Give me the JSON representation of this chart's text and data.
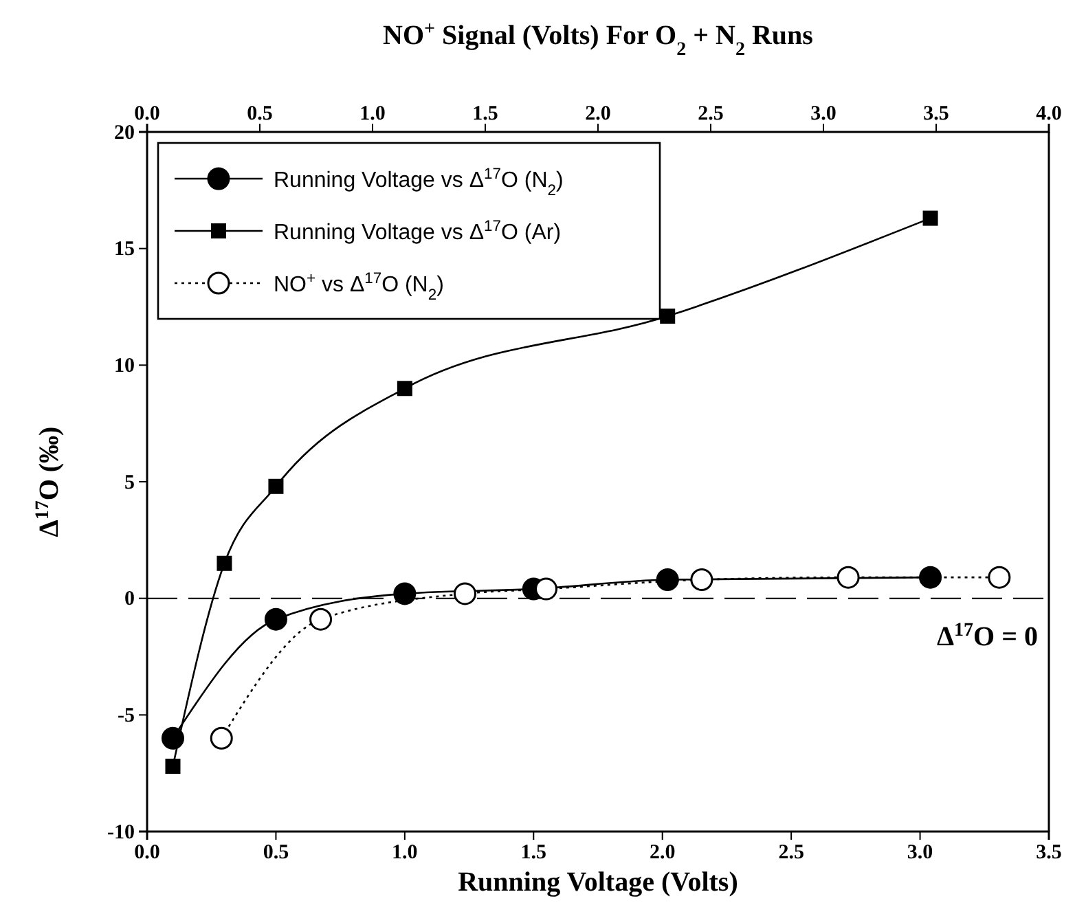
{
  "chart_data": {
    "type": "line",
    "xlabel": "Running Voltage (Volts)",
    "x2label": "NO$^{+}$ Signal (Volts) For O$_{2}$ + N$_{2}$ Runs",
    "ylabel": "Δ$^{17}$O (‰)",
    "xlim": [
      0,
      3.5
    ],
    "xticks": [
      {
        "value": 0,
        "label": "0.0"
      },
      0.5,
      {
        "value": 1,
        "label": "1.0"
      },
      1.5,
      {
        "value": 2,
        "label": "2.0"
      },
      2.5,
      {
        "value": 3,
        "label": "3.0"
      },
      3.5
    ],
    "x2lim": [
      0,
      4
    ],
    "x2ticks": [
      {
        "value": 0,
        "label": "0.0"
      },
      0.5,
      {
        "value": 1,
        "label": "1.0"
      },
      1.5,
      {
        "value": 2,
        "label": "2.0"
      },
      2.5,
      {
        "value": 3,
        "label": "3.0"
      },
      3.5,
      {
        "value": 4,
        "label": "4.0"
      }
    ],
    "ylim": [
      -10,
      20
    ],
    "yticks": [
      -10,
      -5,
      0,
      5,
      10,
      15,
      20
    ],
    "grid": false,
    "legend": "top left",
    "series": [
      {
        "name": "Running Voltage vs Δ$^{17}$O (N$_{2}$)",
        "color": "#000000",
        "marker": "circle",
        "line_style": "solid",
        "x": [
          0.1,
          0.5,
          1.0,
          1.5,
          2.02,
          3.04
        ],
        "values": [
          -6,
          -0.9,
          0.2,
          0.4,
          0.8,
          0.9
        ]
      },
      {
        "name": "Running Voltage vs Δ$^{17}$O (Ar)",
        "color": "#000000",
        "marker": "square",
        "line_style": "solid",
        "x": [
          0.1,
          0.3,
          0.5,
          1.0,
          2.02,
          3.04
        ],
        "values": [
          -7.2,
          1.5,
          4.8,
          9.0,
          12.1,
          16.3
        ]
      },
      {
        "name": "NO$^{+}$ vs Δ$^{17}$O (N$_{2}$)",
        "color": "#000000",
        "marker": "circle",
        "line_style": "dotted",
        "axis": "x2",
        "x": [
          0.33,
          0.77,
          1.41,
          1.77,
          2.46,
          3.11,
          3.78
        ],
        "values": [
          -6,
          -0.9,
          0.2,
          0.4,
          0.8,
          0.9,
          0.9
        ]
      }
    ],
    "ref_lines": [
      {
        "axis": "y",
        "value": 0,
        "label": "Δ$^{17}$O = 0",
        "line_style": "dashed",
        "color": "#000000"
      }
    ]
  }
}
